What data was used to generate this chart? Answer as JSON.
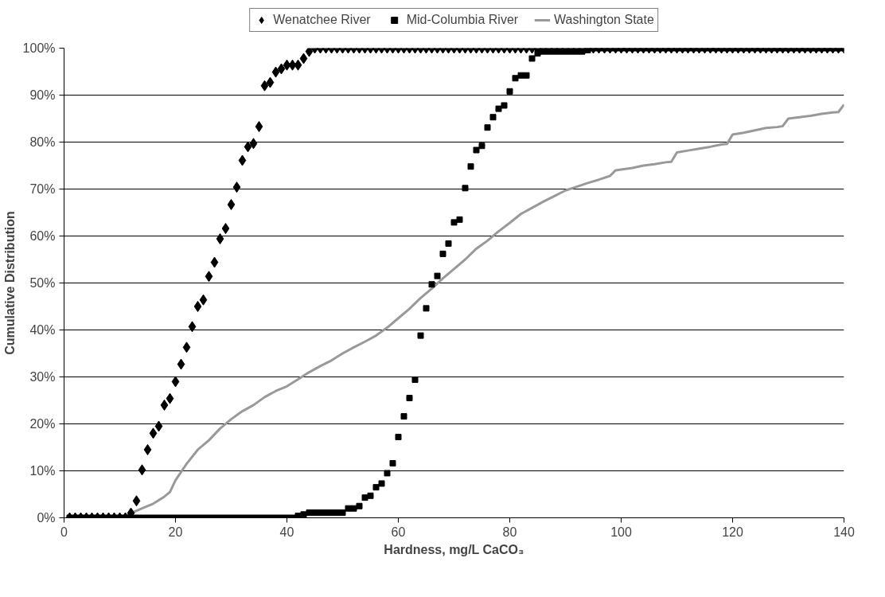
{
  "chart_data": {
    "type": "scatter",
    "xlabel": "Hardness, mg/L CaCO₃",
    "ylabel": "Cumulative Distribution",
    "xlim": [
      0,
      140
    ],
    "xticks": [
      0,
      20,
      40,
      60,
      80,
      100,
      120,
      140
    ],
    "ylim": [
      0,
      100
    ],
    "yticks": [
      {
        "value": 0,
        "label": "0%"
      },
      {
        "value": 10,
        "label": "10%"
      },
      {
        "value": 20,
        "label": "20%"
      },
      {
        "value": 30,
        "label": "30%"
      },
      {
        "value": 40,
        "label": "40%"
      },
      {
        "value": 50,
        "label": "50%"
      },
      {
        "value": 60,
        "label": "60%"
      },
      {
        "value": 70,
        "label": "70%"
      },
      {
        "value": 80,
        "label": "80%"
      },
      {
        "value": 90,
        "label": "90%"
      },
      {
        "value": 100,
        "label": "100%"
      }
    ],
    "grid": "y",
    "legend": "top",
    "x": [
      1,
      2,
      3,
      4,
      5,
      6,
      7,
      8,
      9,
      10,
      11,
      12,
      13,
      14,
      15,
      16,
      17,
      18,
      19,
      20,
      21,
      22,
      23,
      24,
      25,
      26,
      27,
      28,
      29,
      30,
      31,
      32,
      33,
      34,
      35,
      36,
      37,
      38,
      39,
      40,
      41,
      42,
      43,
      44,
      45,
      46,
      47,
      48,
      49,
      50,
      51,
      52,
      53,
      54,
      55,
      56,
      57,
      58,
      59,
      60,
      61,
      62,
      63,
      64,
      65,
      66,
      67,
      68,
      69,
      70,
      71,
      72,
      73,
      74,
      75,
      76,
      77,
      78,
      79,
      80,
      81,
      82,
      83,
      84,
      85,
      86,
      87,
      88,
      89,
      90,
      91,
      92,
      93,
      94,
      95,
      96,
      97,
      98,
      99,
      100,
      101,
      102,
      103,
      104,
      105,
      106,
      107,
      108,
      109,
      110,
      111,
      112,
      113,
      114,
      115,
      116,
      117,
      118,
      119,
      120,
      121,
      122,
      123,
      124,
      125,
      126,
      127,
      128,
      129,
      130,
      131,
      132,
      133,
      134,
      135,
      136,
      137,
      138,
      139,
      140
    ],
    "series": [
      {
        "name": "Wenatchee River",
        "marker": "diamond",
        "color": "#000000",
        "values": [
          0,
          0,
          0,
          0,
          0,
          0,
          0,
          0,
          0,
          0,
          0,
          1,
          3.6,
          10.2,
          14.5,
          18,
          19.5,
          24,
          25.4,
          29,
          32.7,
          36.3,
          40.7,
          45,
          46.4,
          51.4,
          54.4,
          59.4,
          61.6,
          66.7,
          70.4,
          76.1,
          79,
          79.7,
          83.3,
          92,
          92.7,
          94.9,
          95.6,
          96.4,
          96.4,
          96.4,
          97.8,
          99.3,
          100,
          100,
          100,
          100,
          100,
          100,
          100,
          100,
          100,
          100,
          100,
          100,
          100,
          100,
          100,
          100,
          100,
          100,
          100,
          100,
          100,
          100,
          100,
          100,
          100,
          100,
          100,
          100,
          100,
          100,
          100,
          100,
          100,
          100,
          100,
          100,
          100,
          100,
          100,
          100,
          100,
          100,
          100,
          100,
          100,
          100,
          100,
          100,
          100,
          100,
          100,
          100,
          100,
          100,
          100,
          100,
          100,
          100,
          100,
          100,
          100,
          100,
          100,
          100,
          100,
          100,
          100,
          100,
          100,
          100,
          100,
          100,
          100,
          100,
          100,
          100,
          100,
          100,
          100,
          100,
          100,
          100,
          100,
          100,
          100,
          100,
          100,
          100,
          100,
          100,
          100,
          100,
          100,
          100,
          100,
          100
        ]
      },
      {
        "name": "Mid-Columbia River",
        "marker": "square",
        "color": "#000000",
        "values": [
          0,
          0,
          0,
          0,
          0,
          0,
          0,
          0,
          0,
          0,
          0,
          0,
          0,
          0,
          0,
          0,
          0,
          0,
          0,
          0,
          0,
          0,
          0,
          0,
          0,
          0,
          0,
          0,
          0,
          0,
          0,
          0,
          0,
          0,
          0,
          0,
          0,
          0,
          0,
          0,
          0,
          0.4,
          0.7,
          1.1,
          1.1,
          1.1,
          1.1,
          1.1,
          1.1,
          1.1,
          2,
          2,
          2.5,
          4.3,
          4.7,
          6.5,
          7.3,
          9.5,
          11.6,
          17.2,
          21.6,
          25.5,
          29.4,
          38.8,
          44.6,
          49.7,
          51.5,
          56.2,
          58.4,
          62.9,
          63.5,
          70.2,
          74.8,
          78.3,
          79.2,
          83.1,
          85.3,
          87.1,
          87.8,
          90.8,
          93.6,
          94.2,
          94.2,
          97.8,
          98.9,
          99.3,
          99.3,
          99.3,
          99.3,
          99.3,
          99.3,
          99.3,
          99.3,
          99.6,
          100,
          100,
          100,
          100,
          100,
          100,
          100,
          100,
          100,
          100,
          100,
          100,
          100,
          100,
          100,
          100,
          100,
          100,
          100,
          100,
          100,
          100,
          100,
          100,
          100,
          100,
          100,
          100,
          100,
          100,
          100,
          100,
          100,
          100,
          100,
          100,
          100,
          100,
          100,
          100,
          100,
          100,
          100,
          100,
          100,
          100
        ]
      },
      {
        "name": "Washington State",
        "type": "line",
        "marker": "none",
        "color": "#999999",
        "x": [
          11,
          12,
          14,
          16,
          18,
          19,
          20,
          22,
          24,
          26,
          28,
          30,
          32,
          34,
          36,
          38,
          40,
          42,
          44,
          46,
          48,
          50,
          52,
          54,
          56,
          58,
          60,
          62,
          64,
          66,
          68,
          70,
          72,
          74,
          76,
          78,
          80,
          82,
          84,
          86,
          88,
          90,
          92,
          94,
          96,
          98,
          99,
          102,
          104,
          106,
          108,
          109,
          110,
          112,
          114,
          116,
          118,
          119,
          120,
          122,
          124,
          126,
          128,
          129,
          130,
          132,
          134,
          136,
          138,
          139,
          140
        ],
        "values": [
          0,
          1,
          2,
          3,
          4.5,
          5.5,
          8,
          11.5,
          14.5,
          16.5,
          19,
          21,
          22.7,
          24,
          25.7,
          27,
          28,
          29.5,
          31,
          32.3,
          33.5,
          35,
          36.3,
          37.5,
          38.8,
          40.5,
          42.5,
          44.5,
          46.8,
          48.8,
          51,
          53,
          55,
          57.3,
          59,
          61,
          62.8,
          64.7,
          66,
          67.3,
          68.5,
          69.7,
          70.5,
          71.3,
          72,
          72.8,
          74,
          74.5,
          75,
          75.3,
          75.7,
          75.8,
          77.8,
          78.2,
          78.6,
          79,
          79.5,
          79.6,
          81.6,
          82,
          82.5,
          83,
          83.2,
          83.4,
          85,
          85.3,
          85.6,
          86,
          86.3,
          86.4,
          88
        ]
      }
    ]
  }
}
